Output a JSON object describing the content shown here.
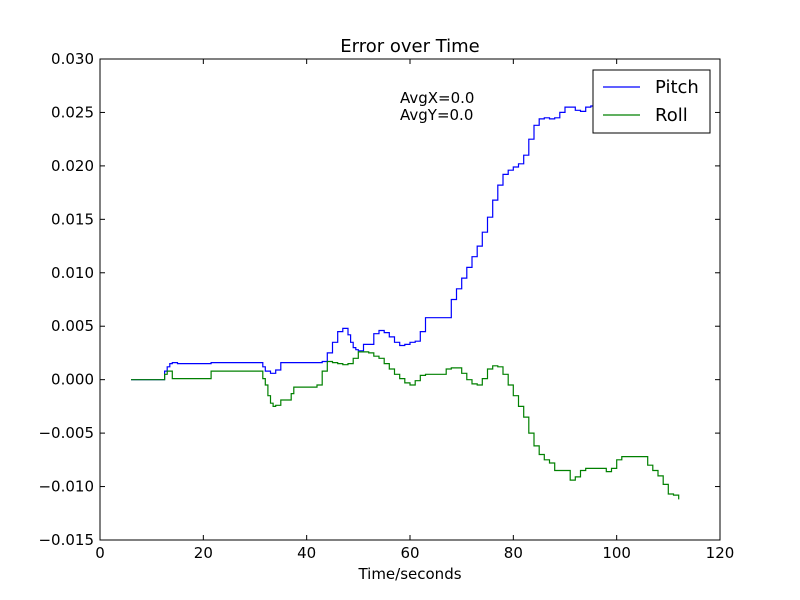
{
  "chart_data": {
    "type": "line",
    "title": "Error over Time",
    "xlabel": "Time/seconds",
    "ylabel": "",
    "xlim": [
      0,
      120
    ],
    "ylim": [
      -0.015,
      0.03
    ],
    "xticks": [
      0,
      20,
      40,
      60,
      80,
      100,
      120
    ],
    "xtick_labels": [
      "0",
      "20",
      "40",
      "60",
      "80",
      "100",
      "120"
    ],
    "yticks": [
      -0.015,
      -0.01,
      -0.005,
      0.0,
      0.005,
      0.01,
      0.015,
      0.02,
      0.025,
      0.03
    ],
    "ytick_labels": [
      "−0.015",
      "−0.010",
      "−0.005",
      "0.000",
      "0.005",
      "0.010",
      "0.015",
      "0.020",
      "0.025",
      "0.030"
    ],
    "grid": false,
    "legend_position": "top-right",
    "annotations": [
      "AvgX=0.0",
      "AvgY=0.0"
    ],
    "series": [
      {
        "name": "Pitch",
        "color": "#0000ff",
        "x": [
          6,
          12.5,
          13,
          13.5,
          14,
          15,
          21,
          21.5,
          31,
          31.5,
          32,
          33,
          34,
          35,
          43,
          43.5,
          44,
          45,
          46,
          47,
          48,
          48.5,
          49,
          49.5,
          50,
          51,
          52,
          53,
          54,
          55,
          56,
          57,
          58,
          59,
          60,
          61,
          62,
          63,
          65,
          67,
          68,
          69,
          70,
          71,
          72,
          73,
          74,
          75,
          76,
          77,
          78,
          79,
          80,
          81,
          82,
          83,
          84,
          85,
          86,
          87,
          88,
          89,
          90,
          91,
          92,
          93,
          94,
          95,
          96,
          97,
          98,
          99,
          100,
          101,
          104
        ],
        "y": [
          0.0,
          0.0008,
          0.0012,
          0.0015,
          0.0016,
          0.0015,
          0.0015,
          0.0016,
          0.0016,
          0.0012,
          0.0008,
          0.0006,
          0.0009,
          0.0016,
          0.0017,
          0.0017,
          0.0025,
          0.0035,
          0.0045,
          0.0048,
          0.0042,
          0.0035,
          0.003,
          0.0028,
          0.0027,
          0.0033,
          0.0033,
          0.0043,
          0.0046,
          0.0044,
          0.004,
          0.0035,
          0.0032,
          0.0033,
          0.0035,
          0.0036,
          0.0045,
          0.0058,
          0.0058,
          0.0058,
          0.0075,
          0.0085,
          0.0095,
          0.0105,
          0.0115,
          0.0125,
          0.0138,
          0.0152,
          0.0168,
          0.0182,
          0.0192,
          0.0196,
          0.0199,
          0.0202,
          0.021,
          0.0225,
          0.0238,
          0.0244,
          0.0245,
          0.0244,
          0.0245,
          0.025,
          0.0255,
          0.0255,
          0.0252,
          0.0251,
          0.0255,
          0.0256,
          0.0255,
          0.0255,
          0.0255,
          0.0255,
          0.0255,
          0.0255,
          0.0255
        ]
      },
      {
        "name": "Roll",
        "color": "#008000",
        "x": [
          6,
          12.5,
          13,
          14,
          21,
          21.5,
          31,
          31.5,
          32,
          32.5,
          33,
          33.5,
          34,
          35,
          36,
          37,
          37.5,
          38,
          39,
          40,
          41,
          42,
          43,
          44,
          45,
          46,
          47,
          48,
          49,
          50,
          51,
          52,
          53,
          54,
          55,
          56,
          57,
          58,
          59,
          60,
          61,
          62,
          63,
          65,
          67,
          68,
          69,
          70,
          71,
          72,
          73,
          74,
          75,
          76,
          77,
          78,
          79,
          80,
          81,
          82,
          83,
          84,
          85,
          86,
          87,
          88,
          89,
          90,
          91,
          92,
          93,
          94,
          95,
          96,
          97,
          98,
          99,
          100,
          101,
          102,
          103,
          104,
          105,
          106,
          107,
          108,
          109,
          110,
          111,
          112
        ],
        "y": [
          0.0,
          0.0005,
          0.0008,
          0.0001,
          0.0001,
          0.0008,
          0.0008,
          0.0001,
          -0.0005,
          -0.0015,
          -0.0022,
          -0.0025,
          -0.0024,
          -0.0019,
          -0.0019,
          -0.0013,
          -0.0007,
          -0.0007,
          -0.0007,
          -0.0007,
          -0.0007,
          -0.0005,
          0.0008,
          0.0017,
          0.0016,
          0.0015,
          0.0014,
          0.0015,
          0.002,
          0.0026,
          0.0026,
          0.0025,
          0.0022,
          0.002,
          0.0015,
          0.001,
          0.0005,
          0.0001,
          -0.0003,
          -0.0005,
          -0.0001,
          0.0004,
          0.0005,
          0.0005,
          0.001,
          0.0011,
          0.0011,
          0.0006,
          0.0,
          -0.0004,
          -0.0005,
          0.0001,
          0.001,
          0.0013,
          0.0012,
          0.0005,
          -0.0005,
          -0.0015,
          -0.0025,
          -0.0035,
          -0.005,
          -0.0062,
          -0.007,
          -0.0075,
          -0.0078,
          -0.0085,
          -0.0085,
          -0.0085,
          -0.0094,
          -0.0091,
          -0.0085,
          -0.0083,
          -0.0083,
          -0.0083,
          -0.0083,
          -0.0086,
          -0.0083,
          -0.0075,
          -0.0072,
          -0.0072,
          -0.0072,
          -0.0072,
          -0.0072,
          -0.008,
          -0.0085,
          -0.009,
          -0.0098,
          -0.0107,
          -0.0108,
          -0.0112
        ]
      }
    ]
  }
}
